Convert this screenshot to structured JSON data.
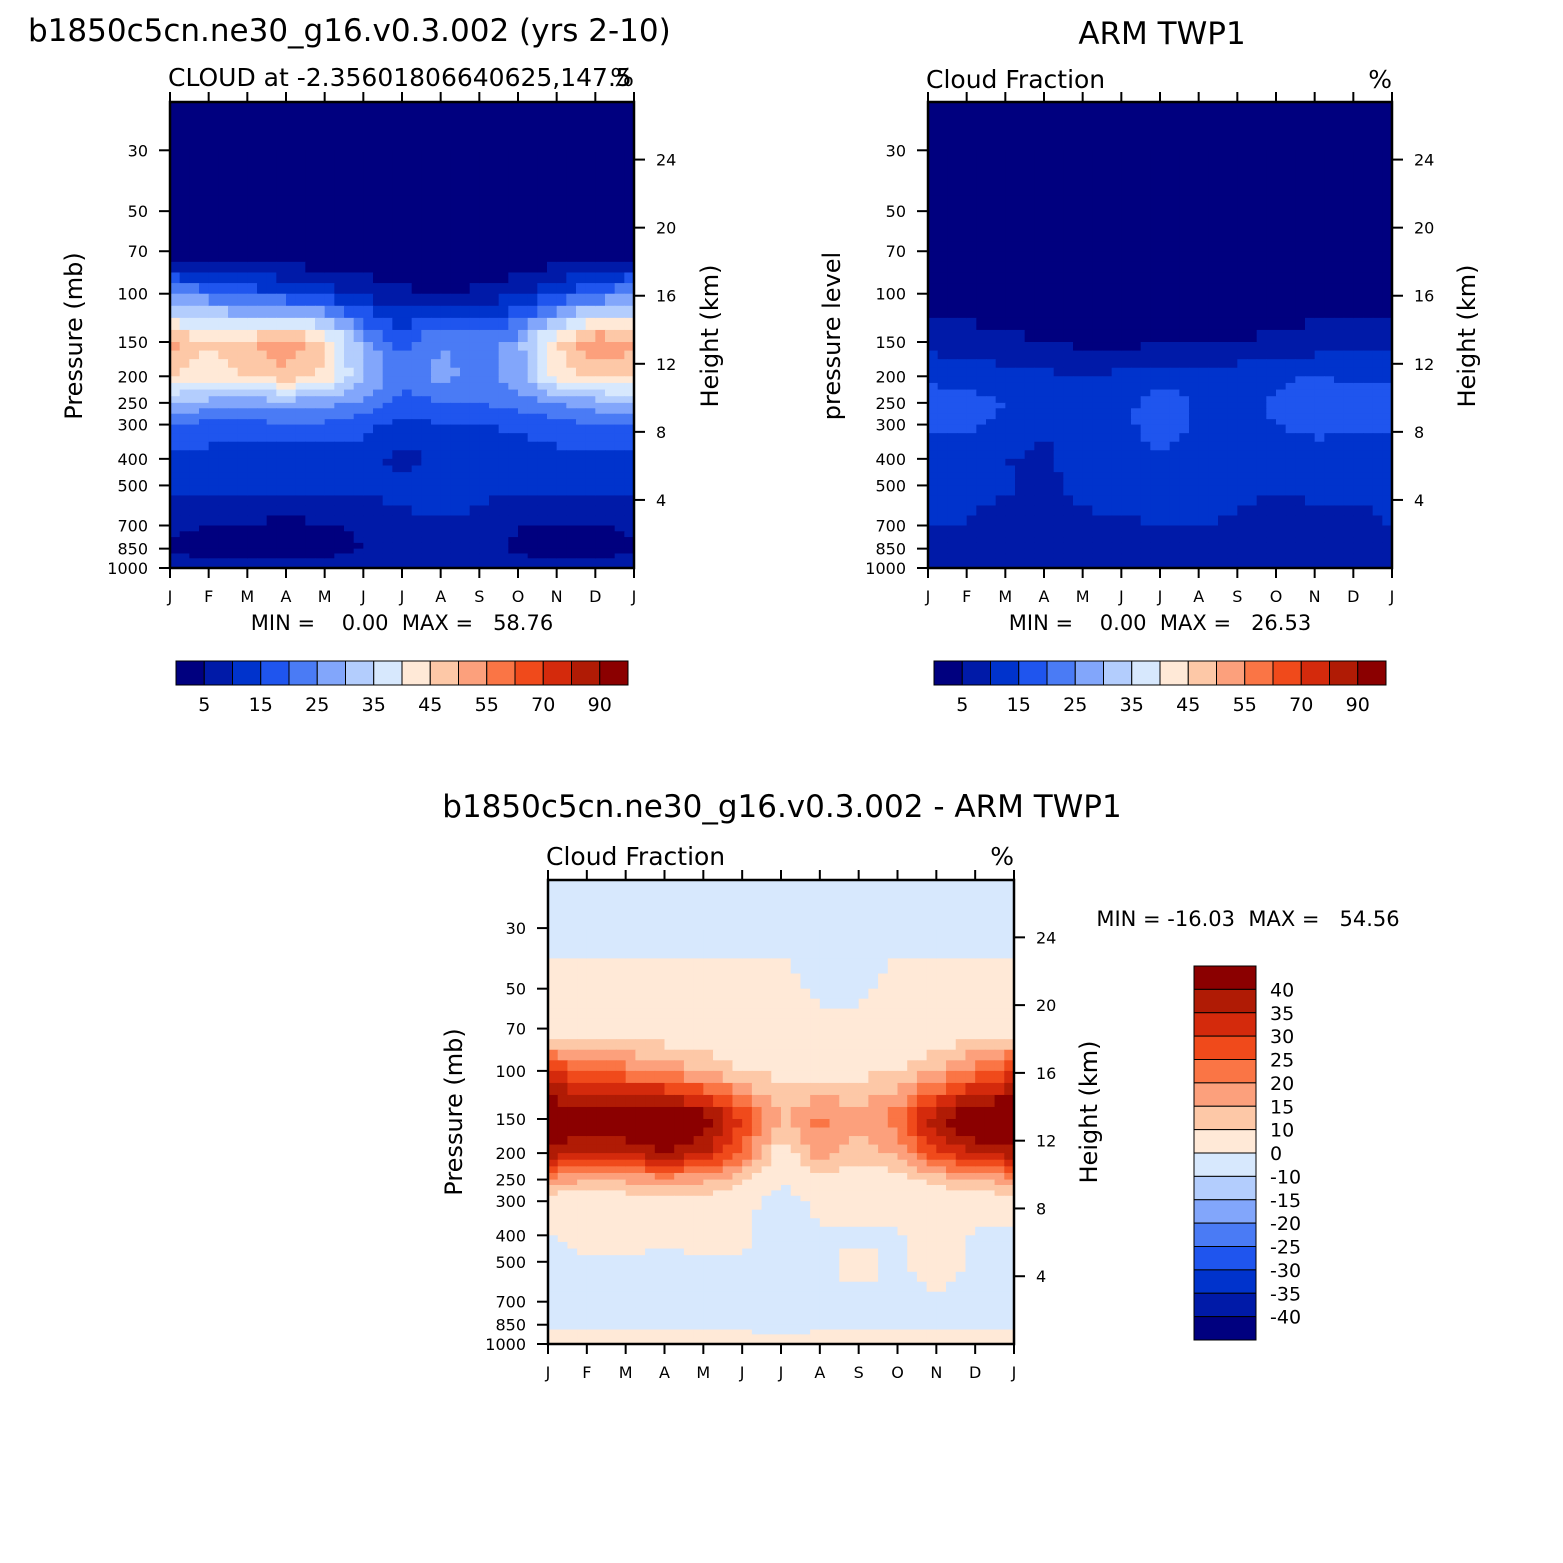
{
  "colors": {
    "c1": "#00007f",
    "c2": "#001aa8",
    "c3": "#0033cc",
    "c4": "#1f55ee",
    "c5": "#4a7bf5",
    "c6": "#82a6fb",
    "c7": "#b3cdfd",
    "c8": "#d7e8fd",
    "c9": "#ffe9d7",
    "c10": "#fdc8a7",
    "c11": "#fca07c",
    "c12": "#fa7545",
    "c13": "#f04a1b",
    "c14": "#d42a0c",
    "c15": "#b01b05",
    "c16": "#8b0000"
  },
  "chart_data": [
    {
      "id": "model",
      "type": "heatmap",
      "figure_title": "b1850c5cn.ne30_g16.v0.3.002 (yrs 2-10)",
      "title_left": "CLOUD at -2.35601806640625,147.5",
      "title_right": "%",
      "ylabel": "Pressure (mb)",
      "ylabel_right": "Height (km)",
      "x_ticks": [
        "J",
        "F",
        "M",
        "A",
        "M",
        "J",
        "J",
        "A",
        "S",
        "O",
        "N",
        "D",
        "J"
      ],
      "y_ticks": [
        30,
        50,
        70,
        100,
        150,
        200,
        250,
        300,
        400,
        500,
        700,
        850,
        1000
      ],
      "y_right_ticks": [
        24,
        20,
        16,
        12,
        8,
        4
      ],
      "ylim": [
        20,
        1000
      ],
      "stats": "MIN =    0.00  MAX =   58.76",
      "colorbar": {
        "orientation": "horizontal",
        "labels": [
          "5",
          "15",
          "25",
          "35",
          "45",
          "55",
          "70",
          "90"
        ],
        "levels": [
          5,
          10,
          15,
          20,
          25,
          30,
          35,
          40,
          45,
          50,
          55,
          60,
          70,
          80,
          90
        ]
      },
      "levels": [
        30,
        50,
        70,
        100,
        150,
        200,
        250,
        300,
        400,
        500,
        700,
        850,
        1000
      ],
      "values": [
        [
          0,
          0,
          0,
          0,
          0,
          0,
          0,
          0,
          0,
          0,
          0,
          0,
          0
        ],
        [
          0,
          0,
          0,
          0,
          0,
          0,
          0,
          0,
          0,
          0,
          0,
          0,
          0
        ],
        [
          0,
          0,
          0,
          0,
          0,
          0,
          0,
          0,
          0,
          0,
          0,
          0,
          0
        ],
        [
          25,
          22,
          18,
          15,
          12,
          9,
          6,
          5,
          6,
          9,
          14,
          20,
          25
        ],
        [
          52,
          45,
          48,
          55,
          45,
          28,
          18,
          25,
          22,
          28,
          45,
          55,
          52
        ],
        [
          45,
          42,
          45,
          48,
          44,
          30,
          22,
          27,
          23,
          28,
          42,
          46,
          45
        ],
        [
          30,
          28,
          27,
          28,
          27,
          24,
          18,
          20,
          20,
          22,
          25,
          28,
          30
        ],
        [
          20,
          18,
          18,
          20,
          19,
          17,
          13,
          15,
          15,
          16,
          18,
          20,
          20
        ],
        [
          14,
          13,
          12,
          10,
          12,
          12,
          8,
          11,
          11,
          12,
          13,
          14,
          14
        ],
        [
          12,
          12,
          13,
          11,
          13,
          12,
          11,
          14,
          11,
          11,
          12,
          12,
          12
        ],
        [
          6,
          5,
          4,
          4,
          4,
          6,
          9,
          9,
          9,
          5,
          4,
          4,
          6
        ],
        [
          4,
          3,
          3,
          3,
          3,
          5,
          7,
          8,
          8,
          4,
          3,
          3,
          4
        ],
        [
          8,
          7,
          7,
          7,
          7,
          8,
          9,
          9,
          9,
          7,
          7,
          7,
          8
        ]
      ]
    },
    {
      "id": "obs",
      "type": "heatmap",
      "figure_title": "ARM TWP1",
      "title_left": "Cloud Fraction",
      "title_right": "%",
      "ylabel": "pressure level",
      "ylabel_right": "Height (km)",
      "x_ticks": [
        "J",
        "F",
        "M",
        "A",
        "M",
        "J",
        "J",
        "A",
        "S",
        "O",
        "N",
        "D",
        "J"
      ],
      "y_ticks": [
        30,
        50,
        70,
        100,
        150,
        200,
        250,
        300,
        400,
        500,
        700,
        850,
        1000
      ],
      "y_right_ticks": [
        24,
        20,
        16,
        12,
        8,
        4
      ],
      "ylim": [
        20,
        1000
      ],
      "stats": "MIN =    0.00  MAX =   26.53",
      "colorbar": {
        "orientation": "horizontal",
        "labels": [
          "5",
          "15",
          "25",
          "35",
          "45",
          "55",
          "70",
          "90"
        ],
        "levels": [
          5,
          10,
          15,
          20,
          25,
          30,
          35,
          40,
          45,
          50,
          55,
          60,
          70,
          80,
          90
        ]
      },
      "levels": [
        30,
        50,
        70,
        100,
        150,
        200,
        250,
        300,
        400,
        500,
        700,
        850,
        1000
      ],
      "values": [
        [
          0,
          0,
          0,
          0,
          0,
          0,
          0,
          0,
          0,
          0,
          0,
          0,
          0
        ],
        [
          0,
          0,
          0,
          0,
          0,
          0,
          0,
          0,
          0,
          0,
          0,
          0,
          0
        ],
        [
          0,
          0,
          0,
          0,
          0,
          0,
          0,
          0,
          0,
          0,
          0,
          0,
          0
        ],
        [
          2,
          2,
          2,
          1,
          1,
          1,
          1,
          1,
          1,
          2,
          2,
          2,
          2
        ],
        [
          8,
          7,
          6,
          5,
          4,
          4,
          4,
          4,
          5,
          6,
          7,
          8,
          8
        ],
        [
          14,
          13,
          12,
          11,
          10,
          11,
          13,
          12,
          13,
          14,
          15,
          14,
          14
        ],
        [
          17,
          17,
          15,
          12,
          11,
          13,
          18,
          14,
          13,
          16,
          19,
          17,
          17
        ],
        [
          16,
          16,
          14,
          11,
          10,
          13,
          19,
          14,
          12,
          15,
          17,
          16,
          16
        ],
        [
          11,
          11,
          10,
          9,
          12,
          12,
          14,
          12,
          10,
          11,
          12,
          11,
          11
        ],
        [
          11,
          12,
          11,
          8,
          13,
          13,
          15,
          14,
          12,
          11,
          12,
          11,
          11
        ],
        [
          10,
          10,
          7,
          6,
          8,
          9,
          10,
          10,
          9,
          6,
          7,
          9,
          10
        ],
        [
          10,
          8,
          6,
          5,
          6,
          8,
          9,
          10,
          8,
          6,
          6,
          8,
          10
        ],
        [
          9,
          8,
          7,
          7,
          7,
          8,
          8,
          9,
          8,
          7,
          7,
          8,
          9
        ]
      ]
    },
    {
      "id": "diff",
      "type": "heatmap",
      "figure_title": "b1850c5cn.ne30_g16.v0.3.002 - ARM TWP1",
      "title_left": "Cloud Fraction",
      "title_right": "%",
      "ylabel": "Pressure (mb)",
      "ylabel_right": "Height (km)",
      "x_ticks": [
        "J",
        "F",
        "M",
        "A",
        "M",
        "J",
        "J",
        "A",
        "S",
        "O",
        "N",
        "D",
        "J"
      ],
      "y_ticks": [
        30,
        50,
        70,
        100,
        150,
        200,
        250,
        300,
        400,
        500,
        700,
        850,
        1000
      ],
      "y_right_ticks": [
        24,
        20,
        16,
        12,
        8,
        4
      ],
      "ylim": [
        20,
        1000
      ],
      "stats": "MIN = -16.03  MAX =   54.56",
      "colorbar": {
        "orientation": "vertical",
        "labels": [
          "40",
          "35",
          "30",
          "25",
          "20",
          "15",
          "10",
          "0",
          "-10",
          "-15",
          "-20",
          "-25",
          "-30",
          "-35",
          "-40"
        ],
        "levels": [
          -40,
          -35,
          -30,
          -25,
          -20,
          -15,
          -10,
          0,
          10,
          15,
          20,
          25,
          30,
          35,
          40
        ]
      },
      "levels": [
        30,
        50,
        70,
        100,
        150,
        200,
        250,
        300,
        400,
        500,
        700,
        850,
        1000
      ],
      "values": [
        [
          -2,
          -2,
          -2,
          -2,
          -2,
          -2,
          -2,
          -2,
          -2,
          -2,
          -2,
          -2,
          -2
        ],
        [
          3,
          3,
          3,
          3,
          3,
          3,
          3,
          -2,
          -2,
          3,
          3,
          3,
          3
        ],
        [
          6,
          5,
          5,
          5,
          5,
          4,
          4,
          3,
          3,
          4,
          5,
          5,
          6
        ],
        [
          30,
          26,
          22,
          18,
          14,
          10,
          8,
          6,
          8,
          10,
          14,
          22,
          30
        ],
        [
          48,
          45,
          46,
          50,
          44,
          30,
          14,
          22,
          18,
          22,
          40,
          48,
          48
        ],
        [
          38,
          35,
          36,
          40,
          36,
          24,
          6,
          18,
          12,
          16,
          30,
          35,
          38
        ],
        [
          18,
          16,
          16,
          18,
          16,
          12,
          2,
          8,
          6,
          8,
          12,
          15,
          18
        ],
        [
          6,
          5,
          6,
          8,
          8,
          5,
          -6,
          4,
          4,
          5,
          5,
          6,
          6
        ],
        [
          -1,
          3,
          3,
          3,
          3,
          3,
          -12,
          -1,
          -1,
          -1,
          3,
          -1,
          -1
        ],
        [
          -1,
          -1,
          -1,
          -3,
          -1,
          -1,
          -4,
          -1,
          2,
          -1,
          3,
          -1,
          -1
        ],
        [
          -1,
          -1,
          -1,
          -1,
          -1,
          -1,
          -4,
          -1,
          -1,
          -1,
          -1,
          -1,
          -1
        ],
        [
          -1,
          -1,
          -1,
          -1,
          -1,
          -1,
          -2,
          -1,
          -1,
          -1,
          -1,
          -1,
          -1
        ],
        [
          2,
          2,
          2,
          2,
          2,
          2,
          2,
          2,
          2,
          2,
          2,
          2,
          2
        ]
      ]
    }
  ]
}
